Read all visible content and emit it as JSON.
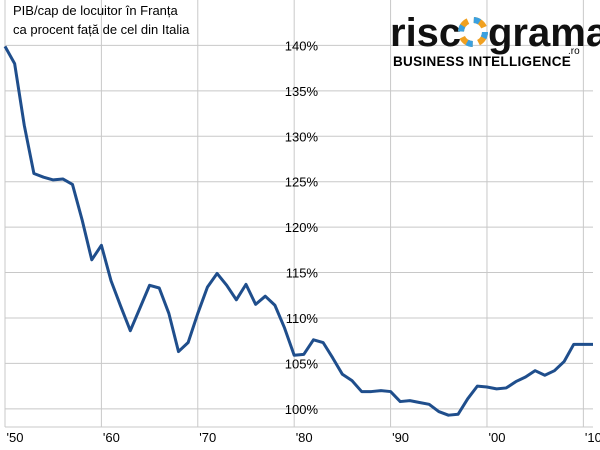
{
  "chart_data": {
    "type": "line",
    "title": "PIB/cap de locuitor în Franța",
    "subtitle": "ca procent față de cel din Italia",
    "logo": {
      "left": "risc",
      "right": "grama",
      "domain": ".ro",
      "tagline": "BUSINESS INTELLIGENCE"
    },
    "x": [
      1950,
      1951,
      1952,
      1953,
      1954,
      1955,
      1956,
      1957,
      1958,
      1959,
      1960,
      1961,
      1962,
      1963,
      1964,
      1965,
      1966,
      1967,
      1968,
      1969,
      1970,
      1971,
      1972,
      1973,
      1974,
      1975,
      1976,
      1977,
      1978,
      1979,
      1980,
      1981,
      1982,
      1983,
      1984,
      1985,
      1986,
      1987,
      1988,
      1989,
      1990,
      1991,
      1992,
      1993,
      1994,
      1995,
      1996,
      1997,
      1998,
      1999,
      2000,
      2001,
      2002,
      2003,
      2004,
      2005,
      2006,
      2007,
      2008,
      2009,
      2010,
      2011
    ],
    "series": [
      {
        "color": "#1f4e8c",
        "values": [
          139.9,
          138,
          131.2,
          125.9,
          125.5,
          125.2,
          125.3,
          124.7,
          120.8,
          116.4,
          118,
          114.1,
          111.3,
          108.6,
          111.1,
          113.6,
          113.3,
          110.5,
          106.3,
          107.3,
          110.5,
          113.4,
          114.9,
          113.6,
          112,
          113.7,
          111.5,
          112.4,
          111.4,
          108.9,
          105.9,
          106,
          107.6,
          107.3,
          105.6,
          103.8,
          103.1,
          101.9,
          101.9,
          102,
          101.9,
          100.8,
          100.9,
          100.7,
          100.5,
          99.7,
          99.3,
          99.4,
          101.1,
          102.5,
          102.4,
          102.2,
          102.3,
          103,
          103.5,
          104.2,
          103.7,
          104.2,
          105.2,
          107.1,
          107.1,
          107.1
        ]
      }
    ],
    "xlim": [
      1950,
      2011
    ],
    "xticks": [
      {
        "value": 1950,
        "label": "'50"
      },
      {
        "value": 1960,
        "label": "'60"
      },
      {
        "value": 1970,
        "label": "'70"
      },
      {
        "value": 1980,
        "label": "'80"
      },
      {
        "value": 1990,
        "label": "'90"
      },
      {
        "value": 2000,
        "label": "'00"
      },
      {
        "value": 2010,
        "label": "'10"
      }
    ],
    "ylim": [
      98,
      145
    ],
    "yticks": [
      {
        "value": 100,
        "label": "100%"
      },
      {
        "value": 105,
        "label": "105%"
      },
      {
        "value": 110,
        "label": "110%"
      },
      {
        "value": 115,
        "label": "115%"
      },
      {
        "value": 120,
        "label": "120%"
      },
      {
        "value": 125,
        "label": "125%"
      },
      {
        "value": 130,
        "label": "130%"
      },
      {
        "value": 135,
        "label": "135%"
      },
      {
        "value": 140,
        "label": "140%"
      }
    ],
    "grid": true
  }
}
